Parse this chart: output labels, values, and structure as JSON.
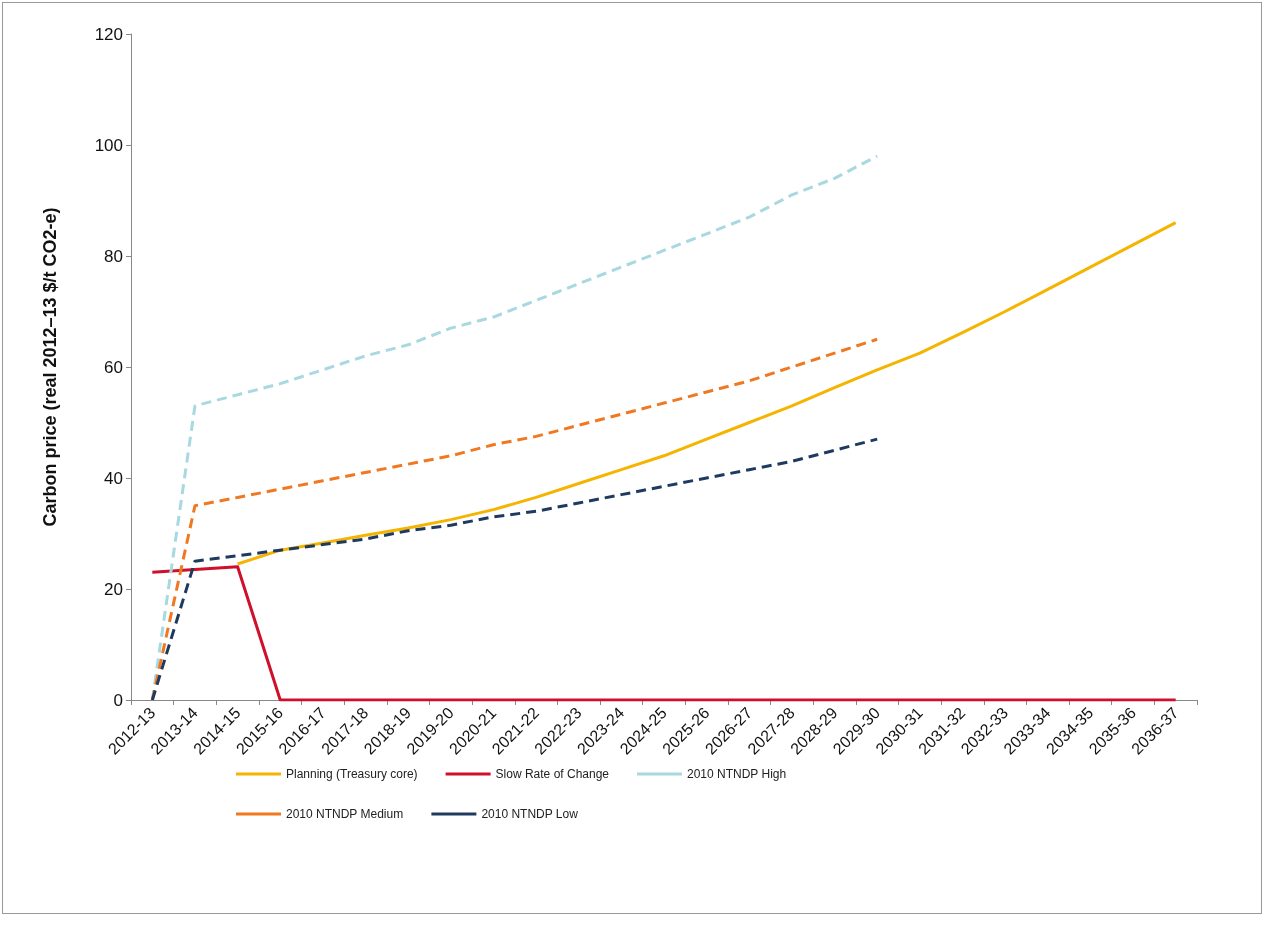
{
  "chart_data": {
    "type": "line",
    "ylabel": "Carbon price (real 2012–13 $/t CO2-e)",
    "categories": [
      "2012-13",
      "2013-14",
      "2014-15",
      "2015-16",
      "2016-17",
      "2017-18",
      "2018-19",
      "2019-20",
      "2020-21",
      "2021-22",
      "2022-23",
      "2023-24",
      "2024-25",
      "2025-26",
      "2026-27",
      "2027-28",
      "2028-29",
      "2029-30",
      "2030-31",
      "2031-32",
      "2032-33",
      "2033-34",
      "2034-35",
      "2035-36",
      "2036-37"
    ],
    "ylim": [
      0,
      120
    ],
    "yticks": [
      0,
      20,
      40,
      60,
      80,
      100,
      120
    ],
    "grid": false,
    "legend": "bottom",
    "marker": "none",
    "series": [
      {
        "name": "Planning (Treasury core)",
        "color": "#f5b400",
        "line_style": "solid",
        "values": [
          null,
          null,
          24.5,
          27,
          28.3,
          29.7,
          31,
          32.5,
          34.3,
          36.5,
          39,
          41.5,
          44,
          47,
          50,
          53,
          56.3,
          59.5,
          62.5,
          66.2,
          70,
          74,
          78,
          82,
          86
        ]
      },
      {
        "name": "Slow Rate of Change",
        "color": "#d0102a",
        "line_style": "solid",
        "values": [
          23,
          23.5,
          24,
          0,
          0,
          0,
          0,
          0,
          0,
          0,
          0,
          0,
          0,
          0,
          0,
          0,
          0,
          0,
          0,
          0,
          0,
          0,
          0,
          0,
          0
        ]
      },
      {
        "name": "2010 NTNDP High",
        "color": "#a8d8e0",
        "line_style": "dashed",
        "values": [
          0,
          53,
          55,
          57,
          59.5,
          62,
          64,
          67,
          69,
          72,
          75,
          78,
          81,
          84,
          87,
          91,
          94,
          98,
          null,
          null,
          null,
          null,
          null,
          null,
          null
        ]
      },
      {
        "name": "2010 NTNDP Medium",
        "color": "#f07820",
        "line_style": "dashed",
        "values": [
          0,
          35,
          36.5,
          38,
          39.5,
          41,
          42.5,
          44,
          46,
          47.5,
          49.5,
          51.5,
          53.5,
          55.5,
          57.5,
          60,
          62.5,
          65,
          null,
          null,
          null,
          null,
          null,
          null,
          null
        ]
      },
      {
        "name": "2010 NTNDP Low",
        "color": "#1f3a5f",
        "line_style": "dashed",
        "values": [
          0,
          25,
          26,
          27,
          28,
          29,
          30.5,
          31.5,
          33,
          34,
          35.5,
          37,
          38.5,
          40,
          41.5,
          43,
          45,
          47,
          null,
          null,
          null,
          null,
          null,
          null,
          null
        ]
      }
    ]
  }
}
